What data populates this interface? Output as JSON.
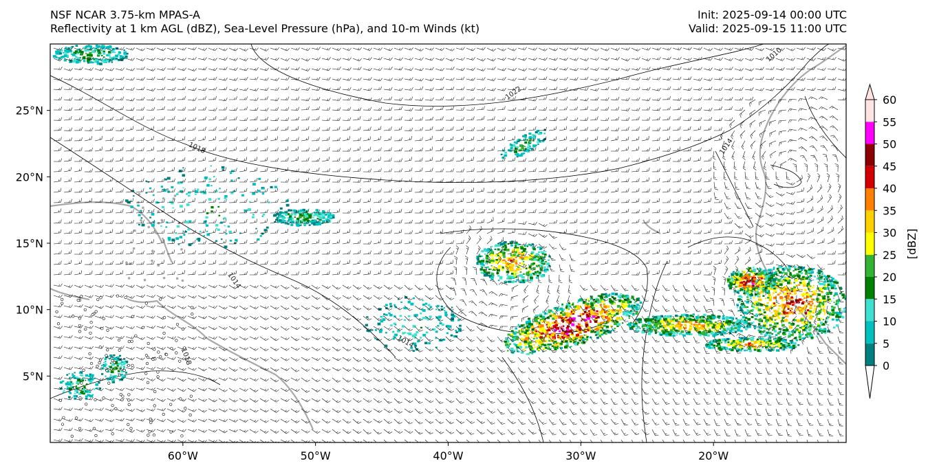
{
  "header": {
    "title_line1": "NSF NCAR 3.75-km MPAS-A",
    "title_line2": "Reflectivity at 1 km AGL (dBZ), Sea-Level Pressure (hPa), and 10-m Winds (kt)",
    "init": "Init: 2025-09-14 00:00 UTC",
    "valid": "Valid: 2025-09-15 11:00 UTC"
  },
  "map": {
    "lon_range": [
      -70,
      -10
    ],
    "lat_range": [
      0,
      30
    ],
    "lon_ticks": [
      {
        "value": -60,
        "label": "60°W"
      },
      {
        "value": -50,
        "label": "50°W"
      },
      {
        "value": -40,
        "label": "40°W"
      },
      {
        "value": -30,
        "label": "30°W"
      },
      {
        "value": -20,
        "label": "20°W"
      }
    ],
    "lat_ticks": [
      {
        "value": 25,
        "label": "25°N"
      },
      {
        "value": 20,
        "label": "20°N"
      },
      {
        "value": 15,
        "label": "15°N"
      },
      {
        "value": 10,
        "label": "10°N"
      },
      {
        "value": 5,
        "label": "5°N"
      }
    ],
    "isobar_labels": [
      "1022",
      "1018",
      "1014",
      "1014",
      "1010",
      "1018",
      "1014"
    ]
  },
  "colorbar": {
    "unit_label": "[dBZ]",
    "ticks": [
      "0",
      "5",
      "10",
      "15",
      "20",
      "25",
      "30",
      "35",
      "40",
      "45",
      "50",
      "55",
      "60"
    ],
    "colors": [
      "#007f7f",
      "#00bfbf",
      "#40e0d0",
      "#008000",
      "#32b432",
      "#ffff00",
      "#ffd000",
      "#ff8000",
      "#d40000",
      "#8b0000",
      "#ff00ff",
      "#ffe4e1"
    ]
  }
}
